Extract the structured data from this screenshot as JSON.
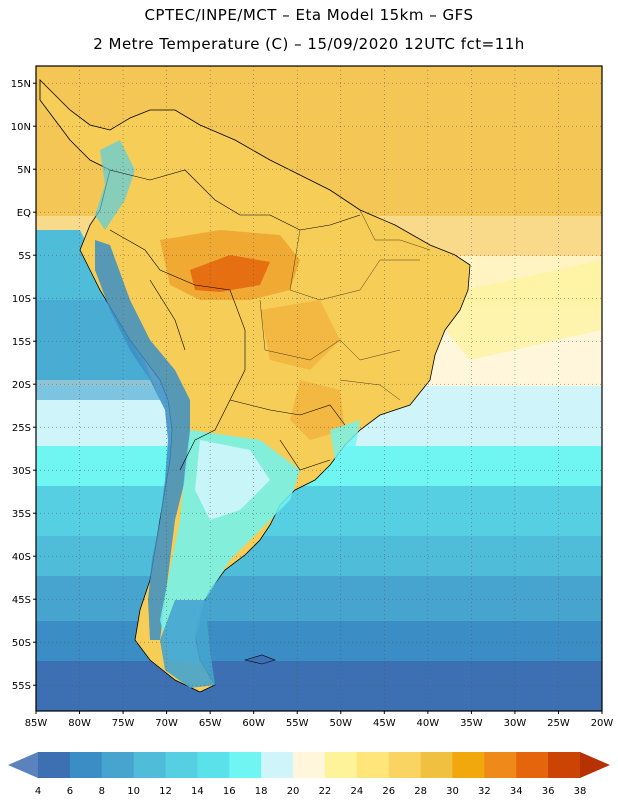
{
  "header": {
    "line1": "CPTEC/INPE/MCT –  Eta Model 15km – GFS",
    "line2": "2 Metre Temperature (C) – 15/09/2020 12UTC fct=11h"
  },
  "map": {
    "lon_range": [
      -85,
      -20
    ],
    "lat_range": [
      -58,
      17
    ],
    "lat_ticks": [
      {
        "value": 15,
        "label": "15N"
      },
      {
        "value": 10,
        "label": "10N"
      },
      {
        "value": 5,
        "label": "5N"
      },
      {
        "value": 0,
        "label": "EQ"
      },
      {
        "value": -5,
        "label": "5S"
      },
      {
        "value": -10,
        "label": "10S"
      },
      {
        "value": -15,
        "label": "15S"
      },
      {
        "value": -20,
        "label": "20S"
      },
      {
        "value": -25,
        "label": "25S"
      },
      {
        "value": -30,
        "label": "30S"
      },
      {
        "value": -35,
        "label": "35S"
      },
      {
        "value": -40,
        "label": "40S"
      },
      {
        "value": -45,
        "label": "45S"
      },
      {
        "value": -50,
        "label": "50S"
      },
      {
        "value": -55,
        "label": "55S"
      }
    ],
    "lon_ticks": [
      {
        "value": -85,
        "label": "85W"
      },
      {
        "value": -80,
        "label": "80W"
      },
      {
        "value": -75,
        "label": "75W"
      },
      {
        "value": -70,
        "label": "70W"
      },
      {
        "value": -65,
        "label": "65W"
      },
      {
        "value": -60,
        "label": "60W"
      },
      {
        "value": -55,
        "label": "55W"
      },
      {
        "value": -50,
        "label": "50W"
      },
      {
        "value": -45,
        "label": "45W"
      },
      {
        "value": -40,
        "label": "40W"
      },
      {
        "value": -35,
        "label": "35W"
      },
      {
        "value": -30,
        "label": "30W"
      },
      {
        "value": -25,
        "label": "25W"
      },
      {
        "value": -20,
        "label": "20W"
      }
    ]
  },
  "legend": {
    "labels": [
      "4",
      "6",
      "8",
      "10",
      "12",
      "14",
      "16",
      "18",
      "20",
      "22",
      "24",
      "26",
      "28",
      "30",
      "32",
      "34",
      "36",
      "38"
    ],
    "colors": [
      "#5a82bc",
      "#3d6fb3",
      "#3b8ec5",
      "#46a4cf",
      "#4fbcd9",
      "#57cfe3",
      "#5ae1ea",
      "#6ff5f2",
      "#cff5fb",
      "#fff6dc",
      "#fff39a",
      "#ffe57a",
      "#f9d463",
      "#f0c040",
      "#f1a80c",
      "#ef8a19",
      "#e4650c",
      "#cc4403",
      "#b73103"
    ]
  }
}
